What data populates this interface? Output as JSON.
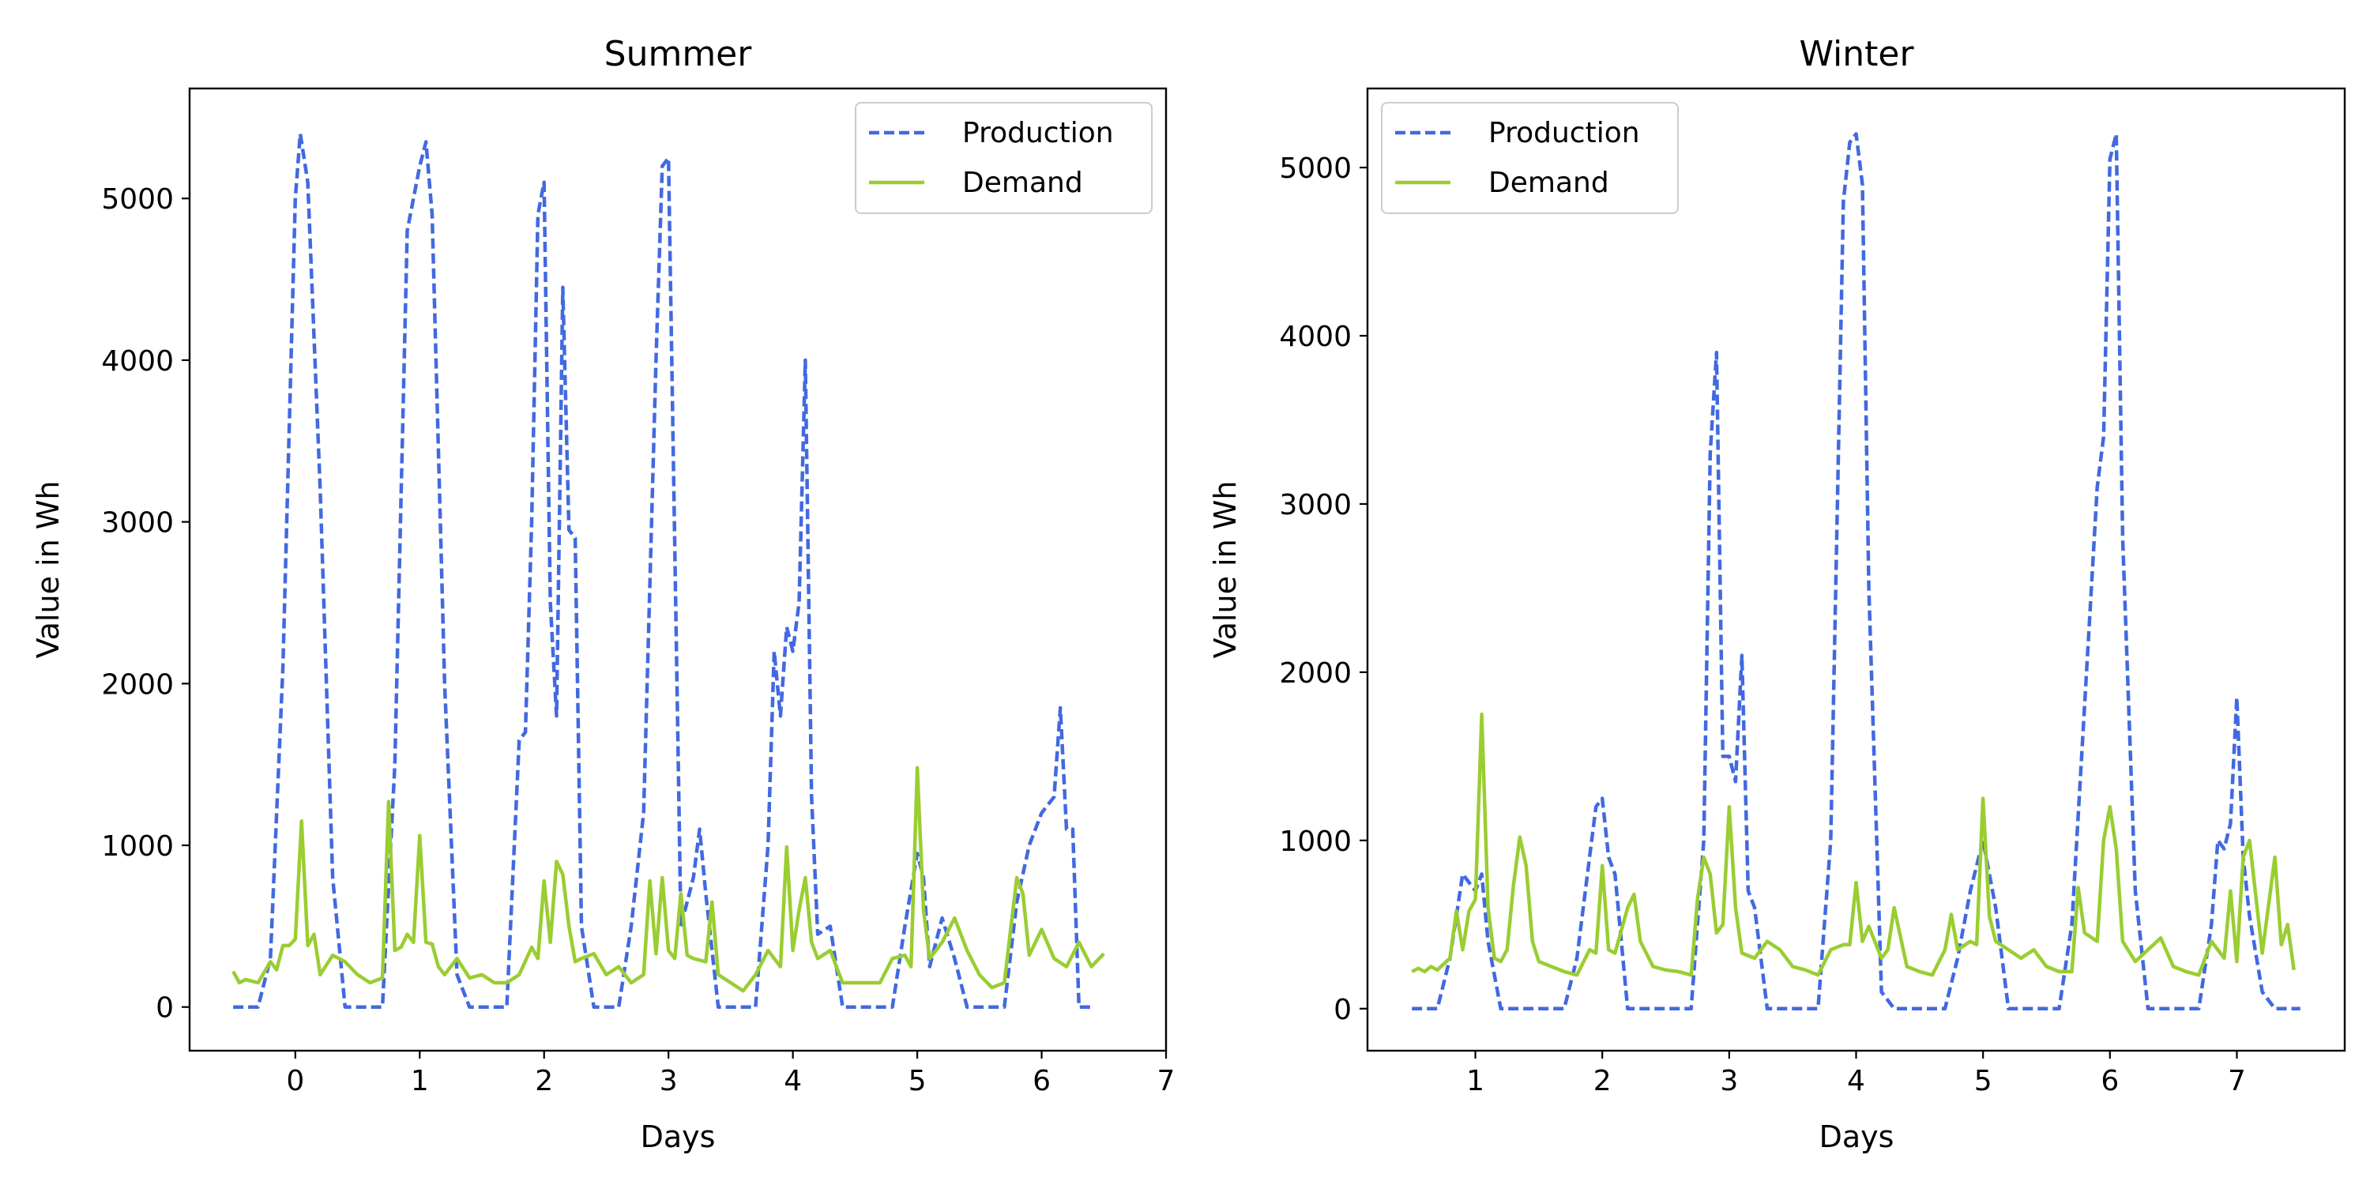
{
  "chart_data": [
    {
      "type": "line",
      "title": "Summer",
      "xlabel": "Days",
      "ylabel": "Value in Wh",
      "xlim": [
        -0.85,
        7.0
      ],
      "ylim": [
        -270,
        5680
      ],
      "xticks": [
        0,
        1,
        2,
        3,
        4,
        5,
        6,
        7
      ],
      "yticks": [
        0,
        1000,
        2000,
        3000,
        4000,
        5000
      ],
      "grid": false,
      "legend": "upper right",
      "series": [
        {
          "name": "Production",
          "color": "#4169e1",
          "style": "dashed",
          "x": [
            -0.5,
            -0.3,
            -0.2,
            -0.1,
            0.0,
            0.04,
            0.1,
            0.2,
            0.3,
            0.4,
            0.5,
            0.7,
            0.8,
            0.9,
            1.0,
            1.05,
            1.1,
            1.2,
            1.3,
            1.4,
            1.5,
            1.7,
            1.8,
            1.85,
            1.9,
            1.95,
            2.0,
            2.05,
            2.1,
            2.15,
            2.2,
            2.25,
            2.3,
            2.4,
            2.6,
            2.7,
            2.8,
            2.9,
            2.95,
            3.0,
            3.1,
            3.2,
            3.25,
            3.3,
            3.4,
            3.5,
            3.7,
            3.8,
            3.85,
            3.9,
            3.95,
            4.0,
            4.05,
            4.1,
            4.15,
            4.2,
            4.3,
            4.4,
            4.6,
            4.8,
            4.9,
            5.0,
            5.05,
            5.1,
            5.2,
            5.3,
            5.4,
            5.5,
            5.7,
            5.8,
            5.9,
            6.0,
            6.1,
            6.15,
            6.2,
            6.25,
            6.3,
            6.4
          ],
          "values": [
            0,
            0,
            300,
            2100,
            5000,
            5400,
            5100,
            3200,
            800,
            0,
            0,
            0,
            1500,
            4800,
            5200,
            5350,
            4900,
            2000,
            200,
            0,
            0,
            0,
            1650,
            1700,
            3000,
            4900,
            5100,
            2500,
            1800,
            4450,
            2950,
            2900,
            500,
            0,
            0,
            500,
            1200,
            4000,
            5200,
            5250,
            500,
            800,
            1100,
            700,
            0,
            0,
            0,
            1000,
            2200,
            1800,
            2350,
            2200,
            2500,
            4000,
            1300,
            450,
            500,
            0,
            0,
            0,
            500,
            950,
            800,
            250,
            550,
            300,
            0,
            0,
            0,
            650,
            1000,
            1200,
            1300,
            1850,
            1100,
            1100,
            0,
            0
          ]
        },
        {
          "name": "Demand",
          "color": "#9acd32",
          "style": "solid",
          "x": [
            -0.5,
            -0.45,
            -0.4,
            -0.3,
            -0.2,
            -0.15,
            -0.1,
            -0.05,
            0.0,
            0.05,
            0.1,
            0.15,
            0.2,
            0.3,
            0.4,
            0.5,
            0.6,
            0.7,
            0.75,
            0.8,
            0.85,
            0.9,
            0.95,
            1.0,
            1.05,
            1.1,
            1.15,
            1.2,
            1.3,
            1.4,
            1.5,
            1.6,
            1.7,
            1.8,
            1.9,
            1.95,
            2.0,
            2.05,
            2.1,
            2.15,
            2.2,
            2.25,
            2.3,
            2.4,
            2.5,
            2.6,
            2.7,
            2.8,
            2.85,
            2.9,
            2.95,
            3.0,
            3.05,
            3.1,
            3.15,
            3.2,
            3.3,
            3.35,
            3.4,
            3.5,
            3.6,
            3.7,
            3.8,
            3.9,
            3.95,
            4.0,
            4.05,
            4.1,
            4.15,
            4.2,
            4.3,
            4.4,
            4.5,
            4.6,
            4.7,
            4.8,
            4.9,
            4.95,
            5.0,
            5.05,
            5.1,
            5.15,
            5.2,
            5.3,
            5.4,
            5.5,
            5.6,
            5.7,
            5.8,
            5.85,
            5.9,
            6.0,
            6.1,
            6.2,
            6.3,
            6.4,
            6.5
          ],
          "values": [
            220,
            150,
            170,
            150,
            280,
            230,
            380,
            380,
            420,
            1150,
            380,
            450,
            200,
            320,
            280,
            200,
            150,
            180,
            1270,
            350,
            370,
            450,
            400,
            1060,
            400,
            390,
            250,
            200,
            300,
            180,
            200,
            150,
            150,
            200,
            370,
            300,
            780,
            400,
            900,
            820,
            500,
            280,
            300,
            330,
            200,
            250,
            150,
            200,
            780,
            330,
            800,
            350,
            300,
            700,
            320,
            300,
            280,
            650,
            200,
            150,
            100,
            200,
            350,
            250,
            990,
            350,
            600,
            800,
            400,
            300,
            350,
            150,
            150,
            150,
            150,
            300,
            320,
            250,
            1480,
            600,
            300,
            350,
            400,
            550,
            350,
            200,
            120,
            150,
            800,
            700,
            320,
            480,
            300,
            250,
            400,
            250,
            330
          ]
        }
      ]
    },
    {
      "type": "line",
      "title": "Winter",
      "xlabel": "Days",
      "ylabel": "Value in Wh",
      "xlim": [
        0.15,
        7.85
      ],
      "ylim": [
        -250,
        5470
      ],
      "xticks": [
        1,
        2,
        3,
        4,
        5,
        6,
        7
      ],
      "yticks": [
        0,
        1000,
        2000,
        3000,
        4000,
        5000
      ],
      "grid": false,
      "legend": "upper left",
      "series": [
        {
          "name": "Production",
          "color": "#4169e1",
          "style": "dashed",
          "x": [
            0.5,
            0.7,
            0.8,
            0.9,
            1.0,
            1.05,
            1.1,
            1.2,
            1.3,
            1.5,
            1.7,
            1.8,
            1.9,
            1.95,
            2.0,
            2.05,
            2.1,
            2.2,
            2.3,
            2.5,
            2.7,
            2.8,
            2.85,
            2.9,
            2.95,
            3.0,
            3.05,
            3.1,
            3.15,
            3.2,
            3.3,
            3.5,
            3.7,
            3.8,
            3.9,
            3.95,
            4.0,
            4.05,
            4.1,
            4.2,
            4.3,
            4.5,
            4.7,
            4.8,
            4.9,
            5.0,
            5.1,
            5.2,
            5.3,
            5.5,
            5.6,
            5.7,
            5.8,
            5.9,
            5.95,
            6.0,
            6.05,
            6.1,
            6.2,
            6.3,
            6.5,
            6.7,
            6.8,
            6.85,
            6.9,
            6.95,
            7.0,
            7.05,
            7.1,
            7.2,
            7.3,
            7.5
          ],
          "values": [
            0,
            0,
            300,
            800,
            700,
            800,
            400,
            0,
            0,
            0,
            0,
            300,
            900,
            1200,
            1250,
            900,
            800,
            0,
            0,
            0,
            0,
            1000,
            3300,
            3900,
            1500,
            1500,
            1350,
            2100,
            700,
            600,
            0,
            0,
            0,
            1000,
            4800,
            5150,
            5200,
            4900,
            2500,
            100,
            0,
            0,
            0,
            300,
            700,
            1000,
            600,
            0,
            0,
            0,
            0,
            500,
            1800,
            3100,
            3400,
            5050,
            5200,
            2800,
            700,
            0,
            0,
            0,
            500,
            1000,
            950,
            1100,
            1850,
            900,
            550,
            100,
            0,
            0
          ]
        },
        {
          "name": "Demand",
          "color": "#9acd32",
          "style": "solid",
          "x": [
            0.5,
            0.55,
            0.6,
            0.65,
            0.7,
            0.8,
            0.85,
            0.9,
            0.95,
            1.0,
            1.05,
            1.1,
            1.15,
            1.2,
            1.25,
            1.3,
            1.35,
            1.4,
            1.45,
            1.5,
            1.6,
            1.7,
            1.8,
            1.9,
            1.95,
            2.0,
            2.05,
            2.1,
            2.2,
            2.25,
            2.3,
            2.4,
            2.5,
            2.6,
            2.7,
            2.75,
            2.8,
            2.85,
            2.9,
            2.95,
            3.0,
            3.05,
            3.1,
            3.2,
            3.3,
            3.4,
            3.5,
            3.6,
            3.7,
            3.8,
            3.9,
            3.95,
            4.0,
            4.05,
            4.1,
            4.2,
            4.25,
            4.3,
            4.4,
            4.5,
            4.6,
            4.7,
            4.75,
            4.8,
            4.9,
            4.95,
            5.0,
            5.05,
            5.1,
            5.2,
            5.3,
            5.4,
            5.5,
            5.6,
            5.7,
            5.75,
            5.8,
            5.9,
            5.95,
            6.0,
            6.05,
            6.1,
            6.2,
            6.3,
            6.4,
            6.5,
            6.6,
            6.7,
            6.8,
            6.9,
            6.95,
            7.0,
            7.05,
            7.1,
            7.2,
            7.3,
            7.35,
            7.4,
            7.45
          ],
          "values": [
            220,
            240,
            220,
            250,
            230,
            300,
            580,
            350,
            580,
            650,
            1750,
            600,
            300,
            280,
            350,
            730,
            1020,
            850,
            400,
            280,
            250,
            220,
            200,
            350,
            330,
            850,
            350,
            330,
            600,
            680,
            400,
            250,
            230,
            220,
            200,
            650,
            900,
            800,
            450,
            500,
            1200,
            600,
            330,
            300,
            400,
            350,
            250,
            230,
            200,
            350,
            380,
            380,
            750,
            400,
            490,
            300,
            350,
            600,
            250,
            220,
            200,
            350,
            560,
            350,
            400,
            380,
            1250,
            550,
            400,
            350,
            300,
            350,
            250,
            220,
            220,
            720,
            450,
            400,
            1000,
            1200,
            950,
            400,
            280,
            350,
            420,
            250,
            220,
            200,
            400,
            300,
            700,
            280,
            900,
            1000,
            330,
            900,
            380,
            500,
            230
          ]
        }
      ]
    }
  ]
}
